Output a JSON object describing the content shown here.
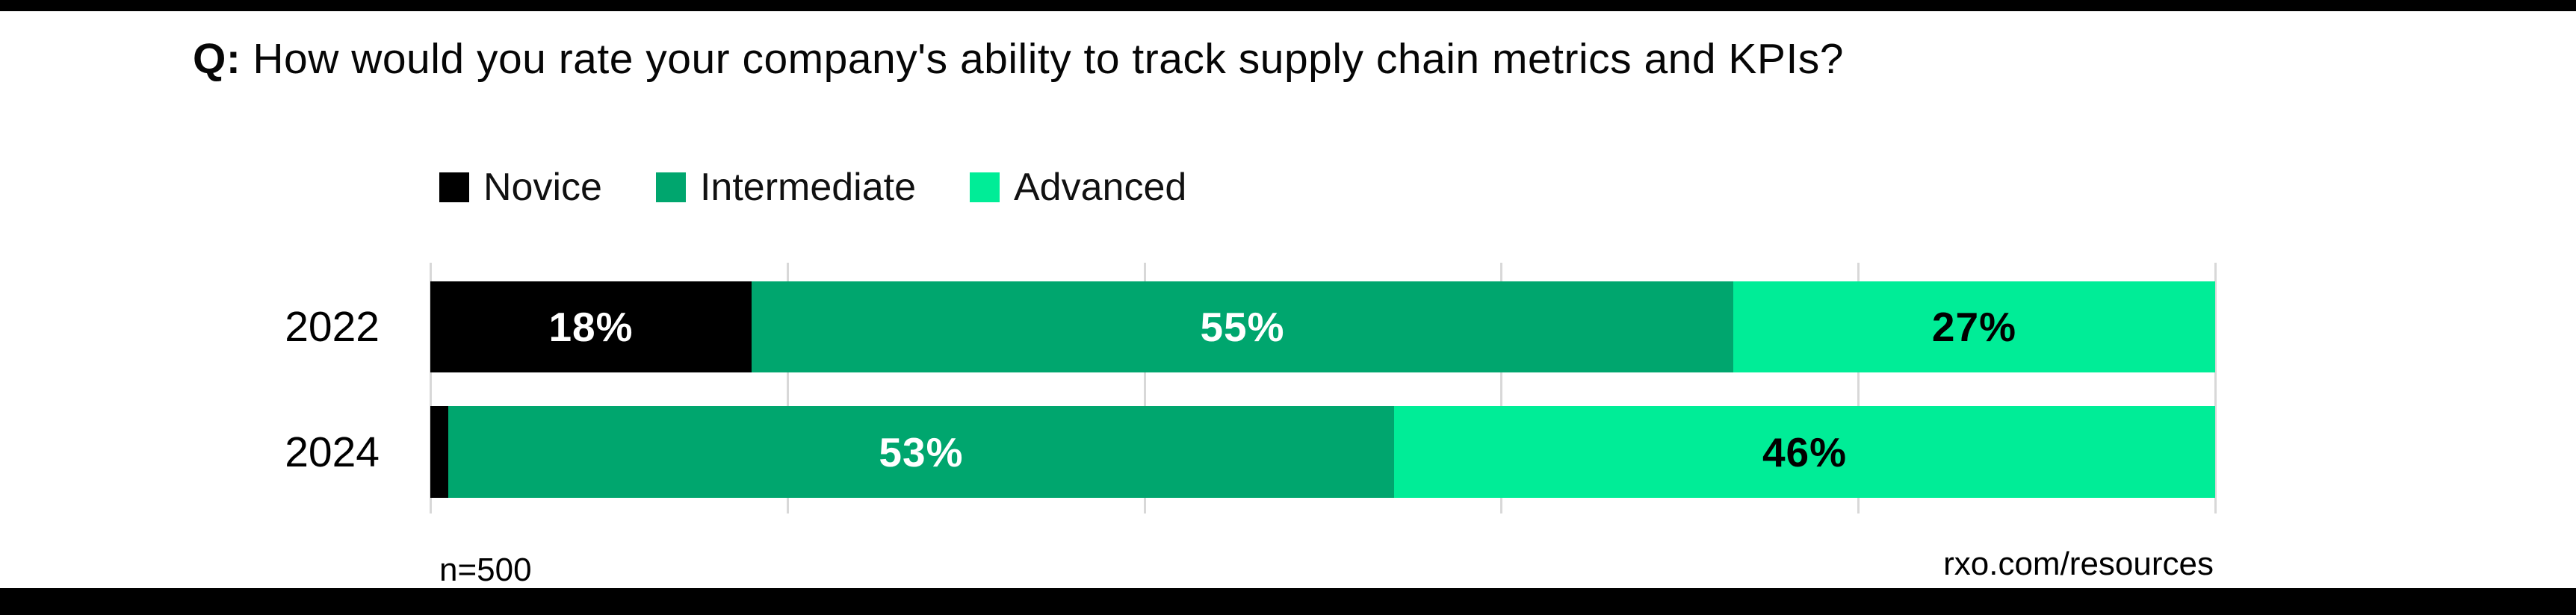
{
  "header": {
    "prefix": "Q:",
    "question": "How would you rate your company's ability to track supply chain metrics and KPIs?"
  },
  "footer": {
    "sample_note": "n=500",
    "source": "rxo.com/resources"
  },
  "chart_data": {
    "type": "bar",
    "orientation": "horizontal",
    "stacked": true,
    "title": "Q: How would you rate your company's ability to track supply chain metrics and KPIs?",
    "categories": [
      "2022",
      "2024"
    ],
    "series": [
      {
        "name": "Novice",
        "color": "#000000",
        "label_color": "#ffffff",
        "values": [
          18,
          1
        ]
      },
      {
        "name": "Intermediate",
        "color": "#00A66E",
        "label_color": "#ffffff",
        "values": [
          55,
          53
        ]
      },
      {
        "name": "Advanced",
        "color": "#00ED97",
        "label_color": "#000000",
        "values": [
          27,
          46
        ]
      }
    ],
    "value_label_format": "{v}%",
    "min_value_for_label": 3,
    "xlim": [
      0,
      100
    ],
    "grid": {
      "show": true,
      "interval": 20,
      "color": "#D8D8D8"
    },
    "legend_position": "top-left",
    "sample_note": "n=500",
    "source": "rxo.com/resources"
  }
}
